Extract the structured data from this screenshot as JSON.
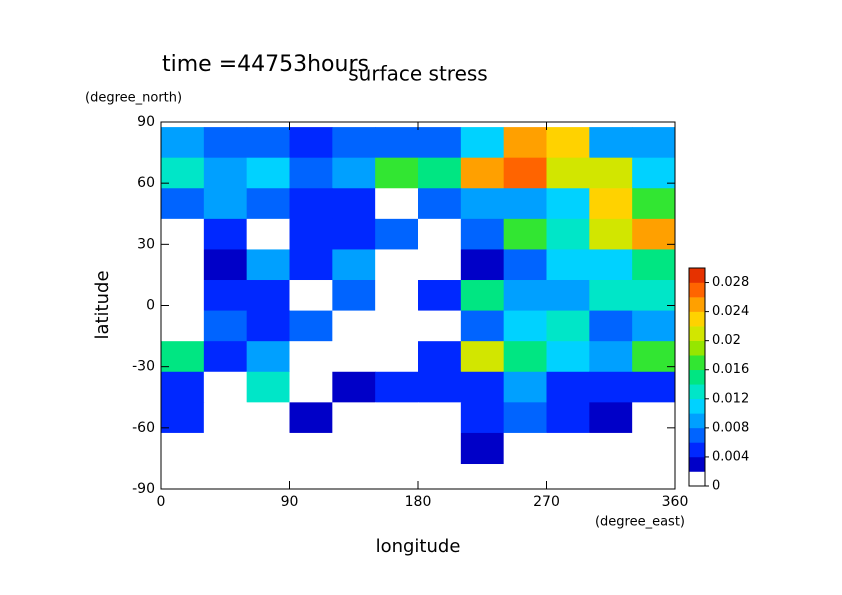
{
  "chart_data": {
    "type": "contour",
    "title": "surface stress",
    "annotation": "time =44753hours",
    "x_label": "longitude",
    "x_unit": "(degree_east)",
    "y_label": "latitude",
    "y_unit": "(degree_north)",
    "xlim": [
      0,
      360
    ],
    "xticks": [
      0,
      90,
      180,
      270,
      360
    ],
    "ylim": [
      -90,
      90
    ],
    "yticks": [
      -90,
      -60,
      -30,
      0,
      30,
      60,
      90
    ],
    "x": [
      15,
      45,
      75,
      105,
      135,
      165,
      195,
      225,
      255,
      285,
      315,
      345
    ],
    "y": [
      80,
      65,
      50,
      35,
      20,
      5,
      -10,
      -25,
      -40,
      -55,
      -70
    ],
    "z": [
      [
        0.008,
        0.006,
        0.006,
        0.005,
        0.006,
        0.006,
        0.006,
        0.01,
        0.024,
        0.022,
        0.008,
        0.008
      ],
      [
        0.012,
        0.008,
        0.01,
        0.006,
        0.008,
        0.016,
        0.014,
        0.024,
        0.026,
        0.02,
        0.02,
        0.01
      ],
      [
        0.006,
        0.008,
        0.006,
        0.004,
        0.004,
        0,
        0.006,
        0.008,
        0.008,
        0.01,
        0.022,
        0.016
      ],
      [
        0,
        0.004,
        0,
        0.004,
        0.004,
        0.006,
        0,
        0.006,
        0.016,
        0.012,
        0.02,
        0.024
      ],
      [
        0,
        0.002,
        0.008,
        0.004,
        0.008,
        0,
        0,
        0.002,
        0.006,
        0.01,
        0.01,
        0.014
      ],
      [
        0,
        0.004,
        0.004,
        0,
        0.006,
        0,
        0.004,
        0.014,
        0.008,
        0.008,
        0.012,
        0.012
      ],
      [
        0,
        0.006,
        0.004,
        0.006,
        0,
        0,
        0,
        0.006,
        0.01,
        0.012,
        0.006,
        0.008
      ],
      [
        0.014,
        0.004,
        0.008,
        0,
        0,
        0,
        0.004,
        0.02,
        0.014,
        0.01,
        0.008,
        0.016
      ],
      [
        0.004,
        0,
        0.012,
        0,
        0.002,
        0.004,
        0.004,
        0.004,
        0.008,
        0.004,
        0.004,
        0.004
      ],
      [
        0.004,
        0,
        0,
        0.002,
        0,
        0,
        0,
        0.004,
        0.006,
        0.004,
        0.002,
        0
      ],
      [
        0,
        0,
        0,
        0,
        0,
        0,
        0,
        0.002,
        0,
        0,
        0,
        0
      ]
    ],
    "levels": [
      0,
      0.002,
      0.004,
      0.006,
      0.008,
      0.01,
      0.012,
      0.014,
      0.016,
      0.018,
      0.02,
      0.022,
      0.024,
      0.026,
      0.028,
      0.03
    ],
    "colors": [
      "#ffffff",
      "#0000c8",
      "#0028ff",
      "#0064ff",
      "#00a0ff",
      "#00d2ff",
      "#00e6c8",
      "#00e682",
      "#32e632",
      "#96e600",
      "#d2e600",
      "#ffd200",
      "#ffa000",
      "#ff6400",
      "#e63200"
    ],
    "colorbar_ticks": [
      0,
      0.004,
      0.008,
      0.012,
      0.016,
      0.02,
      0.024,
      0.028
    ]
  }
}
